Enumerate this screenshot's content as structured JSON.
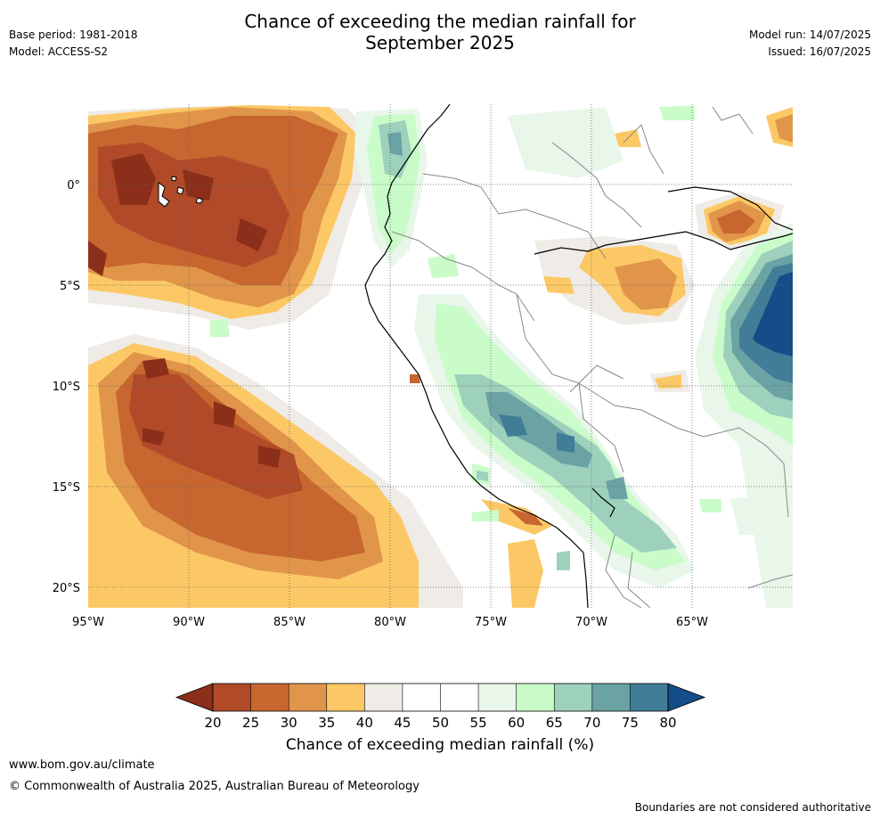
{
  "title_line1": "Chance of exceeding the median rainfall for",
  "title_line2": "September 2025",
  "base_period": "Base period: 1981-2018",
  "model": "Model: ACCESS-S2",
  "model_run": "Model run: 14/07/2025",
  "issued": "Issued: 16/07/2025",
  "lon_ticks": [
    "95°W",
    "90°W",
    "85°W",
    "80°W",
    "75°W",
    "70°W",
    "65°W"
  ],
  "lat_ticks": [
    "0°",
    "5°S",
    "10°S",
    "15°S",
    "20°S"
  ],
  "colorbar": {
    "ticks": [
      "20",
      "25",
      "30",
      "35",
      "40",
      "45",
      "50",
      "55",
      "60",
      "65",
      "70",
      "75",
      "80"
    ],
    "colors": [
      "#8b2e1a",
      "#b04a28",
      "#c8662f",
      "#e0954a",
      "#fcc865",
      "#efebe6",
      "#ffffff",
      "#ffffff",
      "#e9f6ea",
      "#c9fcc9",
      "#9dd1bc",
      "#6ba2a4",
      "#417d96",
      "#144d87"
    ],
    "label": "Chance of exceeding median rainfall (%)"
  },
  "footer": {
    "url": "www.bom.gov.au/climate",
    "copyright": "© Commonwealth of Australia 2025, Australian Bureau of Meteorology",
    "disclaimer": "Boundaries are not considered authoritative"
  }
}
